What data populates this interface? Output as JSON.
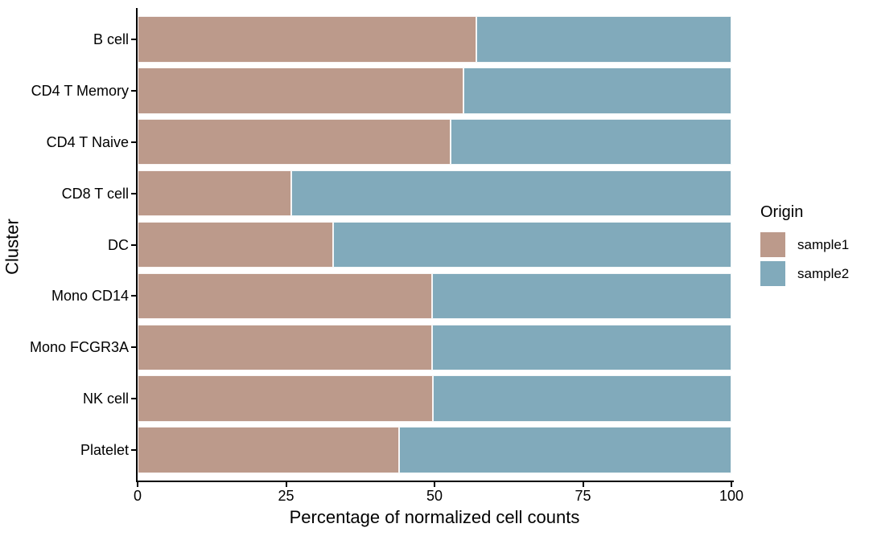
{
  "chart_data": {
    "type": "bar",
    "orientation": "horizontal",
    "stacked": true,
    "title": "",
    "xlabel": "Percentage of normalized cell counts",
    "ylabel": "Cluster",
    "categories": [
      "B cell",
      "CD4 T Memory",
      "CD4 T Naive",
      "CD8 T cell",
      "DC",
      "Mono CD14",
      "Mono FCGR3A",
      "NK cell",
      "Platelet"
    ],
    "series": [
      {
        "name": "sample1",
        "color": "#BC9A8B",
        "values": [
          57.0,
          54.9,
          52.7,
          25.9,
          32.9,
          49.6,
          49.6,
          49.7,
          44.0
        ]
      },
      {
        "name": "sample2",
        "color": "#81AABB",
        "values": [
          43.0,
          45.1,
          47.3,
          74.1,
          67.1,
          50.4,
          50.4,
          50.3,
          56.0
        ]
      }
    ],
    "xlim": [
      0,
      100
    ],
    "x_ticks": [
      "0",
      "25",
      "50",
      "75",
      "100"
    ],
    "grid": false,
    "legend": {
      "title": "Origin",
      "position": "right",
      "entries": [
        "sample1",
        "sample2"
      ]
    },
    "colors": {
      "background": "#FFFFFF",
      "axis": "#000000",
      "text": "#000000",
      "bar_border": "#FFFFFF"
    }
  }
}
